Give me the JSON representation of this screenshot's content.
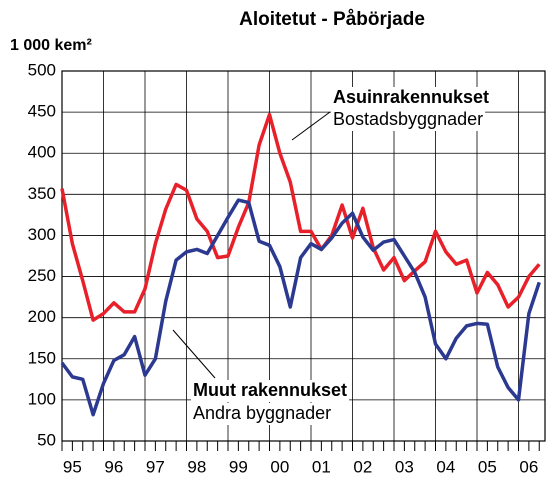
{
  "chart_data": {
    "type": "line",
    "title": "Aloitetut  -  Påbörjade",
    "y_label": "1 000 kem²",
    "categories": [
      null,
      "95",
      null,
      null,
      null,
      "96",
      null,
      null,
      null,
      "97",
      null,
      null,
      null,
      "98",
      null,
      null,
      null,
      "99",
      null,
      null,
      null,
      "00",
      null,
      null,
      null,
      "01",
      null,
      null,
      null,
      "02",
      null,
      null,
      null,
      "03",
      null,
      null,
      null,
      "04",
      null,
      null,
      null,
      "05",
      null,
      null,
      null,
      "06",
      null
    ],
    "series": [
      {
        "name": "Asuinrakennukset",
        "color": "#e8202a",
        "values": [
          357,
          290,
          245,
          197,
          205,
          218,
          207,
          207,
          235,
          290,
          332,
          362,
          355,
          320,
          305,
          273,
          275,
          310,
          340,
          410,
          447,
          400,
          365,
          305,
          305,
          283,
          300,
          337,
          297,
          333,
          285,
          258,
          273,
          245,
          257,
          268,
          305,
          280,
          265,
          270,
          230,
          255,
          240,
          213,
          225,
          250,
          265
        ]
      },
      {
        "name": "Muut rakennukset",
        "color": "#2b3990",
        "values": [
          145,
          128,
          125,
          82,
          120,
          148,
          155,
          177,
          130,
          150,
          220,
          270,
          280,
          283,
          278,
          300,
          322,
          343,
          340,
          293,
          288,
          262,
          213,
          273,
          290,
          283,
          297,
          315,
          327,
          298,
          282,
          292,
          295,
          275,
          255,
          225,
          168,
          150,
          175,
          190,
          193,
          192,
          140,
          115,
          100,
          205,
          243
        ]
      }
    ],
    "annotations": [
      "Bostadsbyggnader",
      "Andra byggnader"
    ],
    "ylim": [
      50,
      500
    ],
    "yticks": [
      50,
      100,
      150,
      200,
      250,
      300,
      350,
      400,
      450,
      500
    ],
    "grid": true
  }
}
